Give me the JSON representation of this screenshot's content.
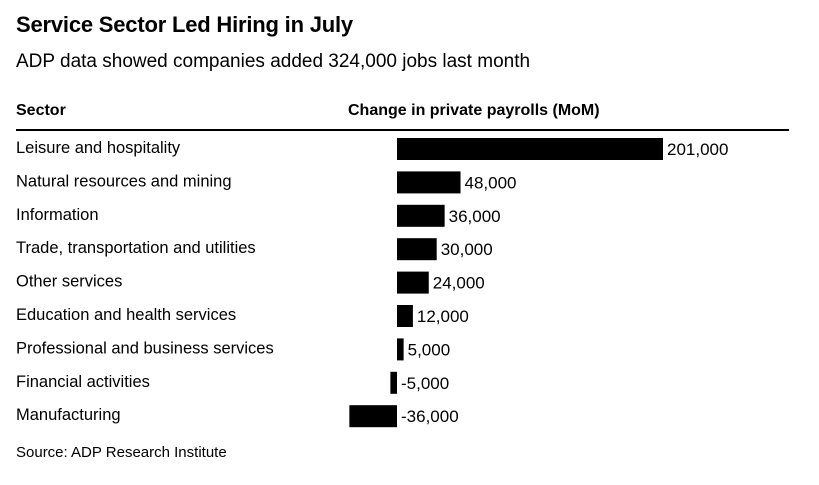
{
  "title": "Service Sector Led Hiring in July",
  "subtitle": "ADP data showed companies added 324,000 jobs last month",
  "source": "Source: ADP Research Institute",
  "chart_data": {
    "type": "bar",
    "orientation": "horizontal",
    "columns": {
      "category": "Sector",
      "value": "Change in private payrolls (MoM)"
    },
    "categories": [
      "Leisure and hospitality",
      "Natural resources and mining",
      "Information",
      "Trade, transportation and utilities",
      "Other services",
      "Education and health services",
      "Professional and business services",
      "Financial activities",
      "Manufacturing"
    ],
    "values": [
      201000,
      48000,
      36000,
      30000,
      24000,
      12000,
      5000,
      -5000,
      -36000
    ],
    "labels": [
      "201,000",
      "48,000",
      "36,000",
      "30,000",
      "24,000",
      "12,000",
      "5,000",
      "-5,000",
      "-36,000"
    ],
    "bar_color": "#000000",
    "grid": false,
    "legend": "none"
  }
}
